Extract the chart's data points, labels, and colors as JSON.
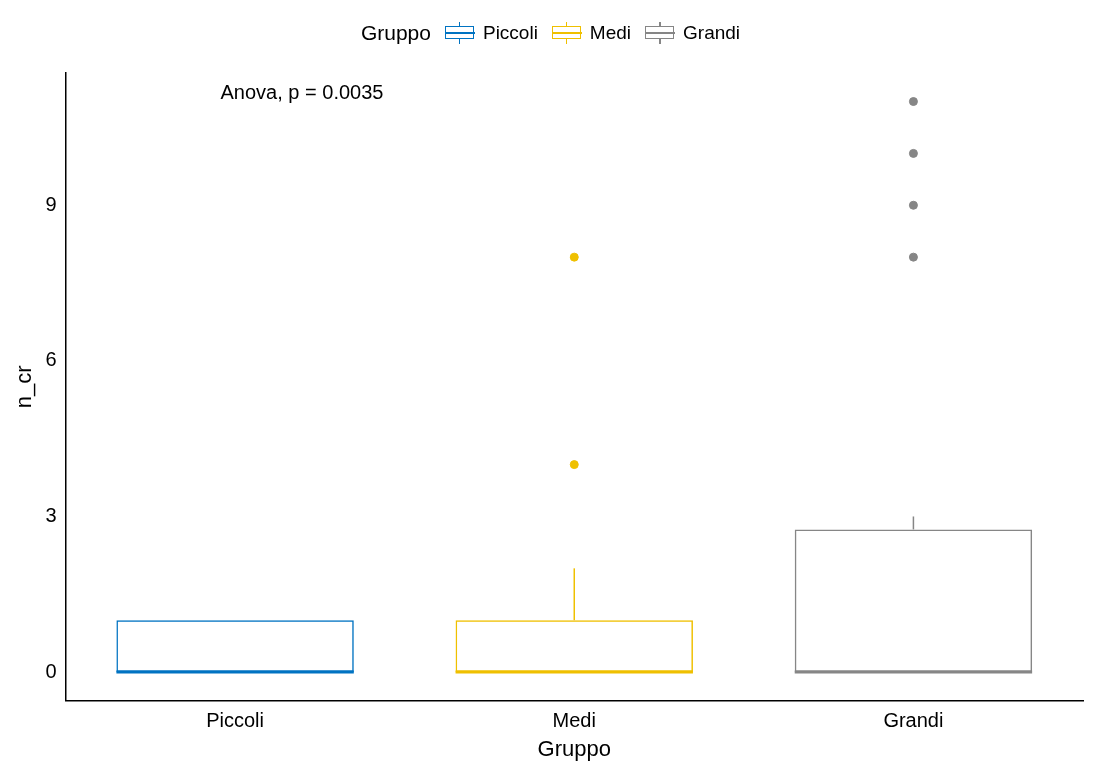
{
  "chart_data": {
    "type": "box",
    "categories": [
      "Piccoli",
      "Medi",
      "Grandi"
    ],
    "xlabel": "Gruppo",
    "ylabel": "n_cr",
    "legend_title": "Gruppo",
    "legend": "top",
    "grid": false,
    "ylim": [
      -0.55,
      11.55
    ],
    "yticks": [
      0,
      3,
      6,
      9
    ],
    "annotations": [
      "Anova, p = 0.0035"
    ],
    "series": [
      {
        "name": "Piccoli",
        "color": "#0073c2",
        "boxes": [
          {
            "low": 0,
            "q1": 0,
            "median": 0,
            "q3": 1,
            "high": 1
          },
          null,
          null
        ]
      },
      {
        "name": "Medi",
        "color": "#efc000",
        "boxes": [
          null,
          {
            "low": 0,
            "q1": 0,
            "median": 0,
            "q3": 1,
            "high": 2,
            "outliers": [
              4,
              8
            ]
          },
          null
        ]
      },
      {
        "name": "Grandi",
        "color": "#868686",
        "boxes": [
          null,
          null,
          {
            "low": 0,
            "q1": 0,
            "median": 0,
            "q3": 2.75,
            "high": 3,
            "outliers": [
              8,
              9,
              10,
              11
            ]
          }
        ]
      }
    ]
  }
}
